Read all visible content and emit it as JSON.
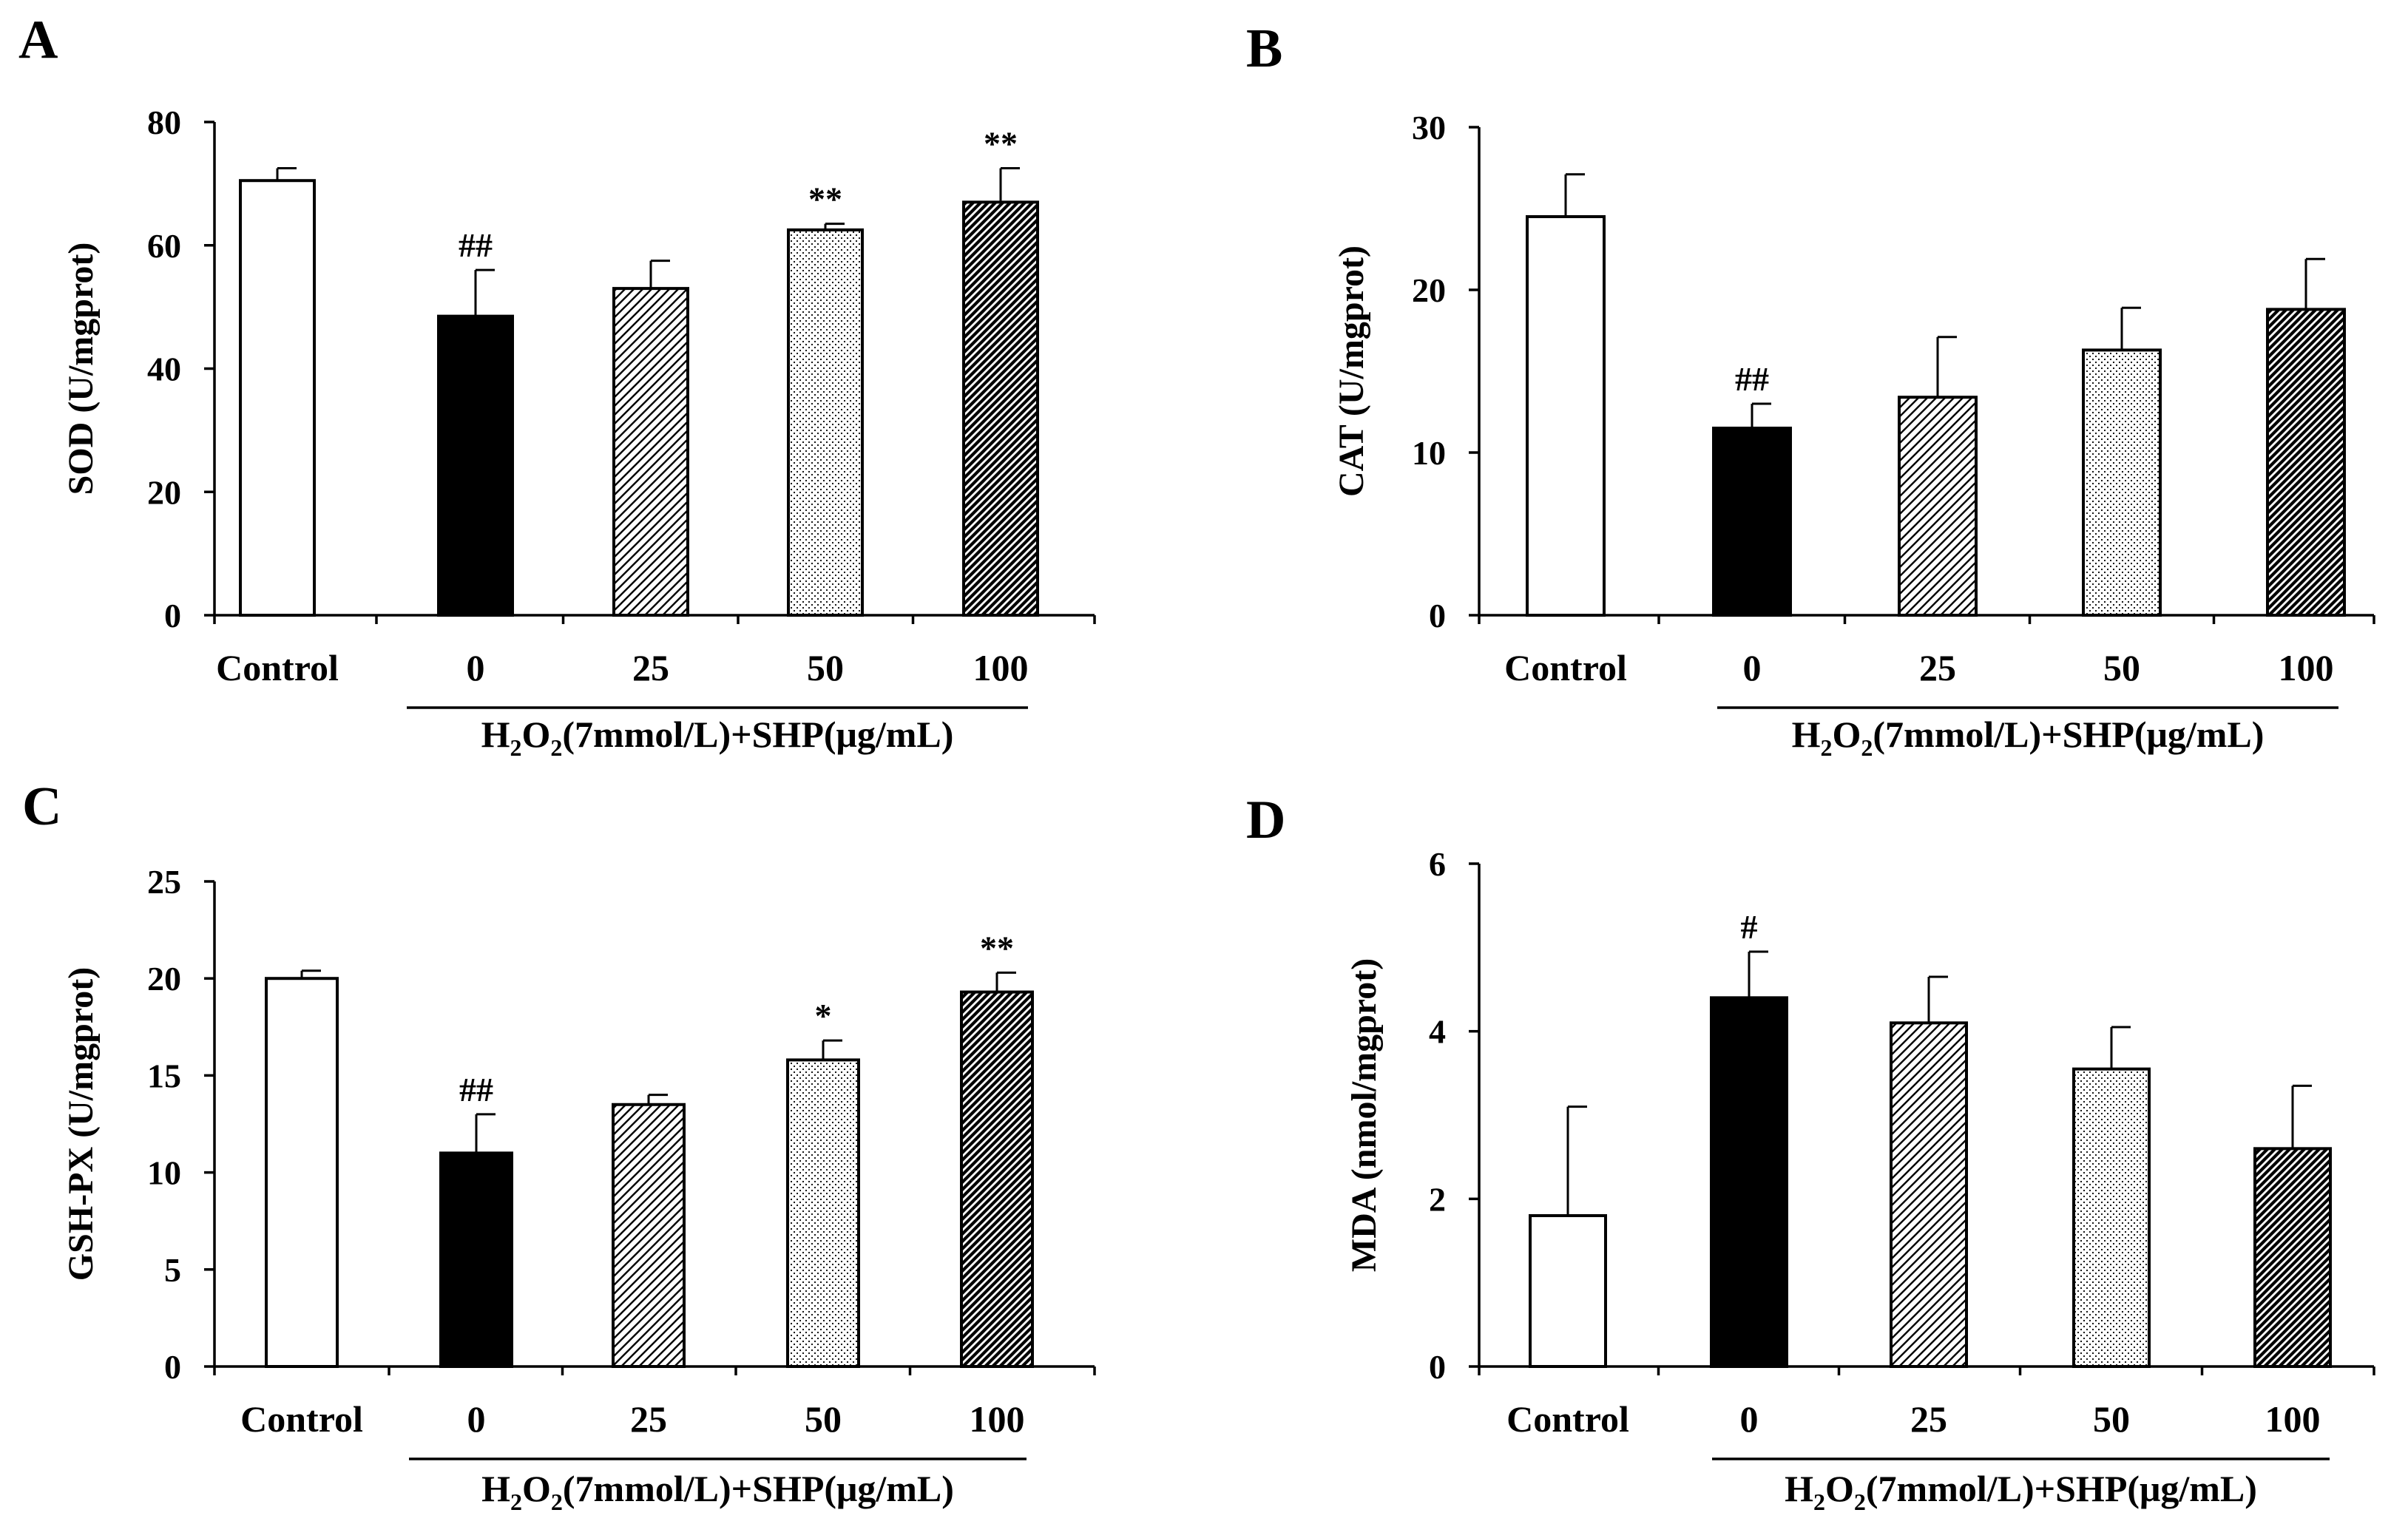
{
  "colors": {
    "control": "#ffffff",
    "zero": "#000000",
    "pattern_ink": "#000000",
    "axis": "#000000",
    "background": "#ffffff"
  },
  "group_label": {
    "prefix": "H",
    "sub1": "2",
    "mid": "O",
    "sub2": "2",
    "suffix": "(7mmol/L)+SHP(μg/mL)"
  },
  "chart_data": [
    {
      "panel": "A",
      "type": "bar",
      "ylabel": "SOD (U/mgprot)",
      "ylim": [
        0,
        80
      ],
      "yticks": [
        0,
        20,
        40,
        60,
        80
      ],
      "categories": [
        "Control",
        "0",
        "25",
        "50",
        "100"
      ],
      "values": [
        70.5,
        48.5,
        53,
        62.5,
        67
      ],
      "errors": [
        2,
        7.5,
        4.5,
        1,
        5.5
      ],
      "fills": [
        "white",
        "black",
        "diagonal",
        "dots",
        "dense-diagonal"
      ],
      "annotations": [
        "",
        "##",
        "",
        "**",
        "**"
      ],
      "group_label": "H2O2(7mmol/L)+SHP(μg/mL)"
    },
    {
      "panel": "B",
      "type": "bar",
      "ylabel": "CAT (U/mgprot)",
      "ylim": [
        0,
        30
      ],
      "yticks": [
        0,
        10,
        20,
        30
      ],
      "categories": [
        "Control",
        "0",
        "25",
        "50",
        "100"
      ],
      "values": [
        24.5,
        11.5,
        13.4,
        16.3,
        18.8
      ],
      "errors": [
        2.6,
        1.5,
        3.7,
        2.6,
        3.1
      ],
      "fills": [
        "white",
        "black",
        "diagonal",
        "dots",
        "dense-diagonal"
      ],
      "annotations": [
        "",
        "##",
        "",
        "",
        ""
      ],
      "group_label": "H2O2(7mmol/L)+SHP(μg/mL)"
    },
    {
      "panel": "C",
      "type": "bar",
      "ylabel": "GSH-PX (U/mgprot)",
      "ylim": [
        0,
        25
      ],
      "yticks": [
        0,
        5,
        10,
        15,
        20,
        25
      ],
      "categories": [
        "Control",
        "0",
        "25",
        "50",
        "100"
      ],
      "values": [
        20,
        11,
        13.5,
        15.8,
        19.3
      ],
      "errors": [
        0.4,
        2,
        0.5,
        1,
        1
      ],
      "fills": [
        "white",
        "black",
        "diagonal",
        "dots",
        "dense-diagonal"
      ],
      "annotations": [
        "",
        "##",
        "",
        "*",
        "**"
      ],
      "group_label": "H2O2(7mmol/L)+SHP(μg/mL)"
    },
    {
      "panel": "D",
      "type": "bar",
      "ylabel": "MDA (nmol/mgprot)",
      "ylim": [
        0,
        6
      ],
      "yticks": [
        0,
        2,
        4,
        6
      ],
      "categories": [
        "Control",
        "0",
        "25",
        "50",
        "100"
      ],
      "values": [
        1.8,
        4.4,
        4.1,
        3.55,
        2.6
      ],
      "errors": [
        1.3,
        0.55,
        0.55,
        0.5,
        0.75
      ],
      "fills": [
        "white",
        "black",
        "diagonal",
        "dots",
        "dense-diagonal"
      ],
      "annotations": [
        "",
        "#",
        "",
        "",
        ""
      ],
      "group_label": "H2O2(7mmol/L)+SHP(μg/mL)"
    }
  ]
}
